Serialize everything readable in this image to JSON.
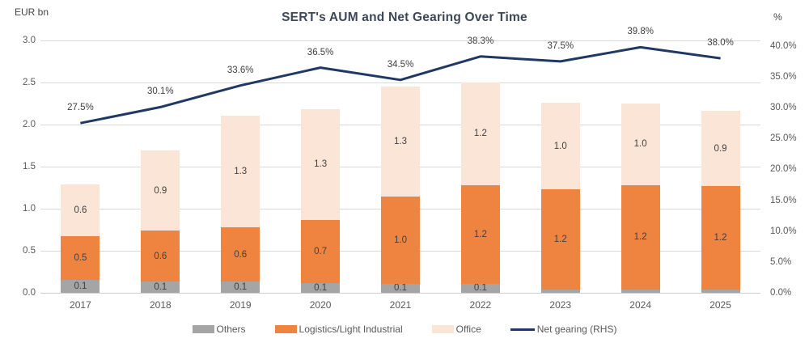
{
  "header": {
    "title": "SERT's AUM and Net Gearing Over Time",
    "left_axis_unit": "EUR bn",
    "right_axis_unit": "%"
  },
  "chart_data": {
    "type": "combo: stacked bar + line",
    "title": "SERT's AUM and Net Gearing Over Time",
    "categories": [
      "2017",
      "2018",
      "2019",
      "2020",
      "2021",
      "2022",
      "2023",
      "2024",
      "2025"
    ],
    "series": [
      {
        "name": "Others",
        "type": "bar",
        "axis": "left",
        "color": "#A5A5A5",
        "values": [
          0.1,
          0.1,
          0.1,
          0.1,
          0.1,
          0.1,
          0.0,
          0.0,
          0.0
        ],
        "labels": [
          "0.1",
          "0.1",
          "0.1",
          "0.1",
          "0.1",
          "0.1",
          "0.0",
          "0.0",
          "0.0"
        ],
        "values_plot": [
          0.15,
          0.13,
          0.13,
          0.12,
          0.11,
          0.11,
          0.04,
          0.04,
          0.04
        ]
      },
      {
        "name": "Logistics/Light Industrial",
        "type": "bar",
        "axis": "left",
        "color": "#EF8440",
        "values": [
          0.5,
          0.6,
          0.6,
          0.7,
          1.0,
          1.2,
          1.2,
          1.2,
          1.2
        ],
        "labels": [
          "0.5",
          "0.6",
          "0.6",
          "0.7",
          "1.0",
          "1.2",
          "1.2",
          "1.2",
          "1.2"
        ],
        "values_plot": [
          0.52,
          0.61,
          0.65,
          0.75,
          1.03,
          1.17,
          1.19,
          1.24,
          1.23
        ]
      },
      {
        "name": "Office",
        "type": "bar",
        "axis": "left",
        "color": "#FBE5D6",
        "values": [
          0.6,
          0.9,
          1.3,
          1.3,
          1.3,
          1.2,
          1.0,
          1.0,
          0.9
        ],
        "labels": [
          "0.6",
          "0.9",
          "1.3",
          "1.3",
          "1.3",
          "1.2",
          "1.0",
          "1.0",
          "0.9"
        ],
        "values_plot": [
          0.62,
          0.95,
          1.33,
          1.31,
          1.31,
          1.22,
          1.03,
          0.97,
          0.89
        ]
      },
      {
        "name": "Net gearing (RHS)",
        "type": "line",
        "axis": "right",
        "color": "#1F3864",
        "values": [
          27.5,
          30.1,
          33.6,
          36.5,
          34.5,
          38.3,
          37.5,
          39.8,
          38.0
        ],
        "labels": [
          "27.5%",
          "30.1%",
          "33.6%",
          "36.5%",
          "34.5%",
          "38.3%",
          "37.5%",
          "39.8%",
          "38.0%"
        ]
      }
    ],
    "axis_left": {
      "unit": "EUR bn",
      "min": 0.0,
      "max": 3.0,
      "tick_step": 0.5,
      "ticks": [
        "0.0",
        "0.5",
        "1.0",
        "1.5",
        "2.0",
        "2.5",
        "3.0"
      ]
    },
    "axis_right": {
      "unit": "%",
      "min": 0.0,
      "max": 40.0,
      "tick_step": 5.0,
      "plot_max": 40.9,
      "ticks": [
        "0.0%",
        "5.0%",
        "10.0%",
        "15.0%",
        "20.0%",
        "25.0%",
        "30.0%",
        "35.0%",
        "40.0%"
      ]
    },
    "grid": "horizontal gridlines on (left-axis intervals)",
    "legend_position": "bottom-center",
    "legend": [
      {
        "label": "Others",
        "color": "#A5A5A5",
        "shape": "rect"
      },
      {
        "label": "Logistics/Light Industrial",
        "color": "#EF8440",
        "shape": "rect"
      },
      {
        "label": "Office",
        "color": "#FBE5D6",
        "shape": "rect"
      },
      {
        "label": "Net gearing (RHS)",
        "color": "#1F3864",
        "shape": "line"
      }
    ]
  }
}
